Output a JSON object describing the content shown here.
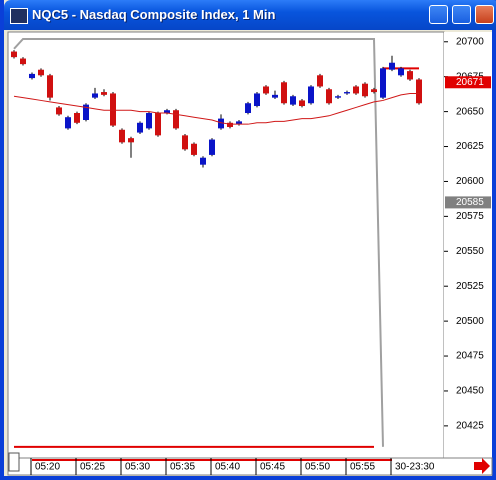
{
  "window_title": "NQC5 - Nasdaq Composite Index, 1 Min",
  "chart_data": {
    "type": "candlestick",
    "categories": [
      null,
      null,
      "05:20",
      null,
      null,
      null,
      null,
      "05:25",
      null,
      null,
      null,
      null,
      "05:30",
      null,
      null,
      null,
      null,
      "05:35",
      null,
      null,
      null,
      null,
      "05:40",
      null,
      null,
      null,
      null,
      "05:45",
      null,
      null,
      null,
      null,
      "05:50",
      null,
      null,
      null,
      null,
      "05:55",
      null,
      null,
      null,
      null,
      "30-23:30",
      null,
      null,
      null
    ],
    "open": [
      20693,
      20688,
      20674,
      20680,
      20676,
      20653,
      20638,
      20649,
      20644,
      20660,
      20664,
      20663,
      20637,
      20631,
      20635,
      20638,
      20649,
      20649,
      20651,
      20633,
      20627,
      20612,
      20619,
      20638,
      20642,
      20641,
      20649,
      20654,
      20668,
      20660,
      20671,
      20655,
      20658,
      20656,
      20676,
      20666,
      20660,
      20663,
      20668,
      20670,
      20666,
      20660,
      20680,
      20676,
      20679,
      20673
    ],
    "high": [
      20694,
      20689,
      20678,
      20681,
      20677,
      20654,
      20647,
      20650,
      20656,
      20667,
      20666,
      20664,
      20638,
      20632,
      20643,
      20650,
      20650,
      20652,
      20652,
      20634,
      20628,
      20618,
      20631,
      20648,
      20643,
      20644,
      20657,
      20664,
      20669,
      20665,
      20672,
      20662,
      20659,
      20669,
      20677,
      20667,
      20662,
      20665,
      20669,
      20671,
      20667,
      20682,
      20690,
      20682,
      20680,
      20674
    ],
    "low": [
      20688,
      20683,
      20673,
      20675,
      20658,
      20647,
      20637,
      20641,
      20643,
      20659,
      20661,
      20639,
      20627,
      20617,
      20634,
      20637,
      20632,
      20648,
      20637,
      20622,
      20618,
      20610,
      20618,
      20637,
      20638,
      20640,
      20648,
      20653,
      20662,
      20659,
      20655,
      20654,
      20653,
      20655,
      20667,
      20655,
      20659,
      20662,
      20662,
      20660,
      20663,
      20659,
      20679,
      20675,
      20672,
      20655
    ],
    "close": [
      20689,
      20684,
      20677,
      20676,
      20660,
      20648,
      20646,
      20642,
      20655,
      20663,
      20662,
      20640,
      20628,
      20628,
      20642,
      20649,
      20633,
      20651,
      20638,
      20623,
      20619,
      20617,
      20630,
      20645,
      20639,
      20643,
      20656,
      20663,
      20663,
      20662,
      20656,
      20661,
      20654,
      20668,
      20668,
      20656,
      20661,
      20664,
      20663,
      20661,
      20664,
      20681,
      20685,
      20681,
      20673,
      20656
    ],
    "up_color": "#0a14c8",
    "down_color": "#d01010",
    "moving_average": {
      "color": "#d01818",
      "values": [
        20661,
        20660,
        20659,
        20658,
        20657,
        20656,
        20655,
        20654,
        20653,
        20652,
        20651,
        20651,
        20651,
        20651,
        20650,
        20650,
        20649,
        20649,
        20648,
        20647,
        20646,
        20645,
        20644,
        20642,
        20641,
        20641,
        20641,
        20642,
        20642,
        20643,
        20643,
        20644,
        20645,
        20645,
        20646,
        20647,
        20649,
        20651,
        20653,
        20655,
        20657,
        20658,
        20660,
        20662,
        20663,
        20663
      ]
    },
    "indicator": {
      "color": "#a0a0a0",
      "values": [
        20695,
        20702,
        20702,
        20702,
        20702,
        20702,
        20702,
        20702,
        20702,
        20702,
        20702,
        20702,
        20702,
        20702,
        20702,
        20702,
        20702,
        20702,
        20702,
        20702,
        20702,
        20702,
        20702,
        20702,
        20702,
        20702,
        20702,
        20702,
        20702,
        20702,
        20702,
        20702,
        20702,
        20702,
        20702,
        20702,
        20702,
        20702,
        20702,
        20702,
        20702,
        20410,
        null,
        null,
        null,
        null
      ]
    },
    "low_level": {
      "color": "#e00000",
      "values": [
        20410,
        20410,
        20410,
        20410,
        20410,
        20410,
        20410,
        20410,
        20410,
        20410,
        20410,
        20410,
        20410,
        20410,
        20410,
        20410,
        20410,
        20410,
        20410,
        20410,
        20410,
        20410,
        20410,
        20410,
        20410,
        20410,
        20410,
        20410,
        20410,
        20410,
        20410,
        20410,
        20410,
        20410,
        20410,
        20410,
        20410,
        20410,
        20410,
        20410,
        20410,
        null,
        null,
        null,
        null,
        null
      ]
    },
    "high_level": {
      "color": "#e00000",
      "values": [
        null,
        null,
        null,
        null,
        null,
        null,
        null,
        null,
        null,
        null,
        null,
        null,
        null,
        null,
        null,
        null,
        null,
        null,
        null,
        null,
        null,
        null,
        null,
        null,
        null,
        null,
        null,
        null,
        null,
        null,
        null,
        null,
        null,
        null,
        null,
        null,
        null,
        null,
        null,
        null,
        null,
        20681,
        20681,
        20681,
        20681,
        20681
      ]
    },
    "price_marks": [
      {
        "value": 20671,
        "color": "#e00000"
      },
      {
        "value": 20585,
        "color": "#808080"
      }
    ],
    "ylim": [
      20402,
      20707
    ],
    "yticks": [
      20425,
      20450,
      20475,
      20500,
      20525,
      20550,
      20575,
      20600,
      20625,
      20650,
      20675,
      20700
    ]
  }
}
